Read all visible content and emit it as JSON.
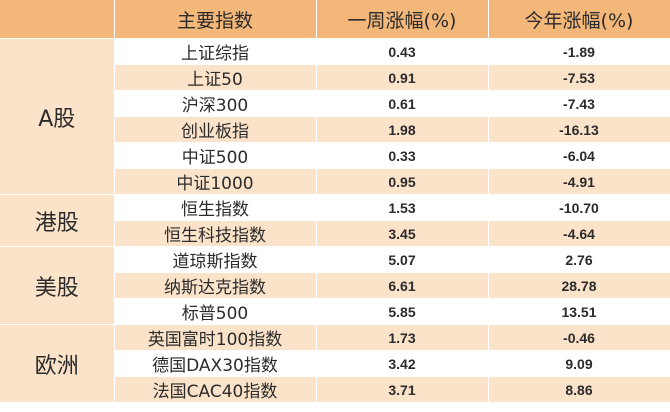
{
  "table": {
    "headers": [
      "",
      "主要指数",
      "一周涨幅(%)",
      "今年涨幅(%)"
    ],
    "groups": [
      {
        "region": "A股",
        "rows": [
          {
            "name": "上证综指",
            "week": "0.43",
            "ytd": "-1.89"
          },
          {
            "name": "上证50",
            "week": "0.91",
            "ytd": "-7.53"
          },
          {
            "name": "沪深300",
            "week": "0.61",
            "ytd": "-7.43"
          },
          {
            "name": "创业板指",
            "week": "1.98",
            "ytd": "-16.13"
          },
          {
            "name": "中证500",
            "week": "0.33",
            "ytd": "-6.04"
          },
          {
            "name": "中证1000",
            "week": "0.95",
            "ytd": "-4.91"
          }
        ]
      },
      {
        "region": "港股",
        "rows": [
          {
            "name": "恒生指数",
            "week": "1.53",
            "ytd": "-10.70"
          },
          {
            "name": "恒生科技指数",
            "week": "3.45",
            "ytd": "-4.64"
          }
        ]
      },
      {
        "region": "美股",
        "rows": [
          {
            "name": "道琼斯指数",
            "week": "5.07",
            "ytd": "2.76"
          },
          {
            "name": "纳斯达克指数",
            "week": "6.61",
            "ytd": "28.78"
          },
          {
            "name": "标普500",
            "week": "5.85",
            "ytd": "13.51"
          }
        ]
      },
      {
        "region": "欧洲",
        "rows": [
          {
            "name": "英国富时100指数",
            "week": "1.73",
            "ytd": "-0.46"
          },
          {
            "name": "德国DAX30指数",
            "week": "3.42",
            "ytd": "9.09"
          },
          {
            "name": "法国CAC40指数",
            "week": "3.71",
            "ytd": "8.86"
          }
        ]
      }
    ]
  }
}
